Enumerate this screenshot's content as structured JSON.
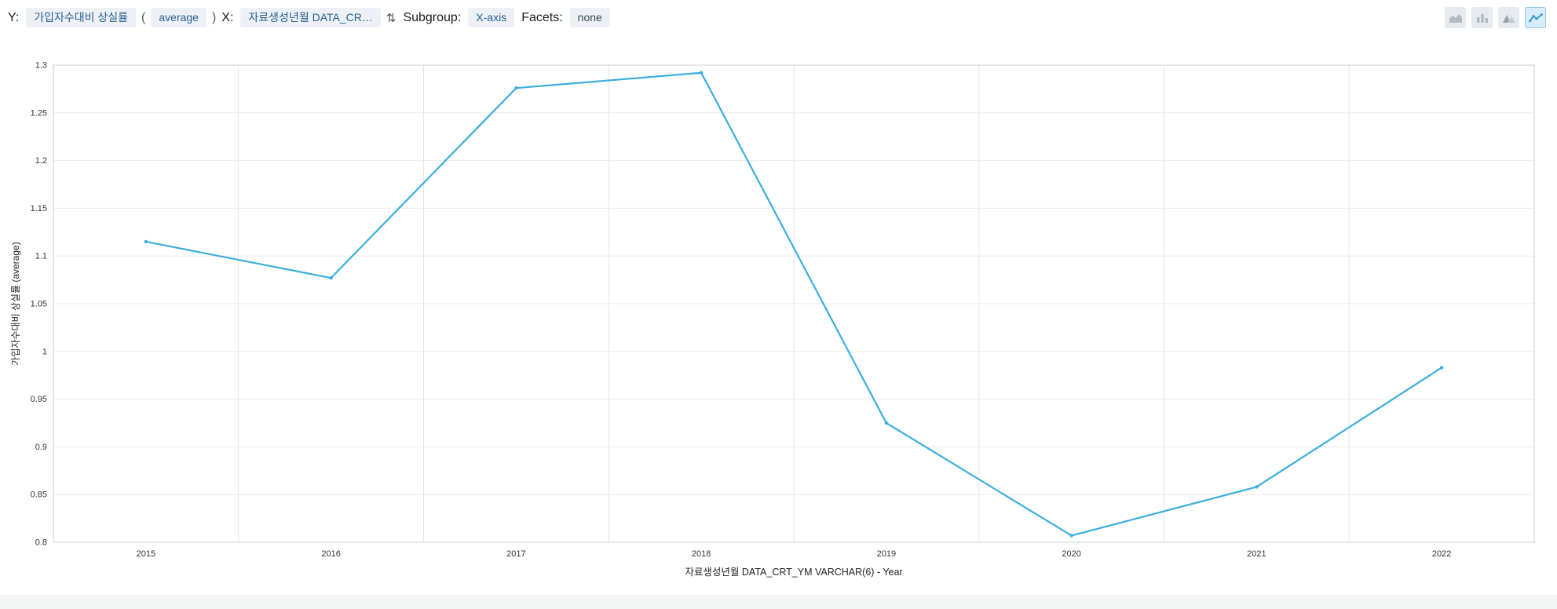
{
  "toolbar": {
    "y_label": "Y:",
    "y_field": "가입자수대비 상실률",
    "paren_open": "(",
    "aggregation": "average",
    "paren_close": ")",
    "x_label": "X:",
    "x_field": "자료생성년월 DATA_CR…",
    "sort_icon_glyph": "⇅",
    "subgroup_label": "Subgroup:",
    "subgroup_value": "X-axis",
    "facets_label": "Facets:",
    "facets_value": "none"
  },
  "chart_type_switcher": {
    "options": [
      "area",
      "bar",
      "stacked-area",
      "line"
    ],
    "selected": "line"
  },
  "colors": {
    "line": "#3aaede",
    "selected_icon": "#2b93cf",
    "chip_bg": "#edf1f6",
    "chip_text": "#27618f",
    "grid_vertical": "#e3e3e3",
    "grid_horizontal": "#ececec",
    "plot_border": "#cfcfcf"
  },
  "chart_data": {
    "type": "line",
    "x": [
      "2015",
      "2016",
      "2017",
      "2018",
      "2019",
      "2020",
      "2021",
      "2022"
    ],
    "series": [
      {
        "name": "가입자수대비 상실률 (average)",
        "values": [
          1.115,
          1.077,
          1.276,
          1.292,
          0.925,
          0.807,
          0.858,
          0.983
        ]
      }
    ],
    "title": "",
    "xlabel": "자료생성년월 DATA_CRT_YM VARCHAR(6) - Year",
    "ylabel": "가입자수대비 상실률 (average)",
    "ylim": [
      0.8,
      1.3
    ],
    "ytick_step": 0.05,
    "grid": true,
    "legend": "none",
    "line_color": "#3aaede"
  }
}
